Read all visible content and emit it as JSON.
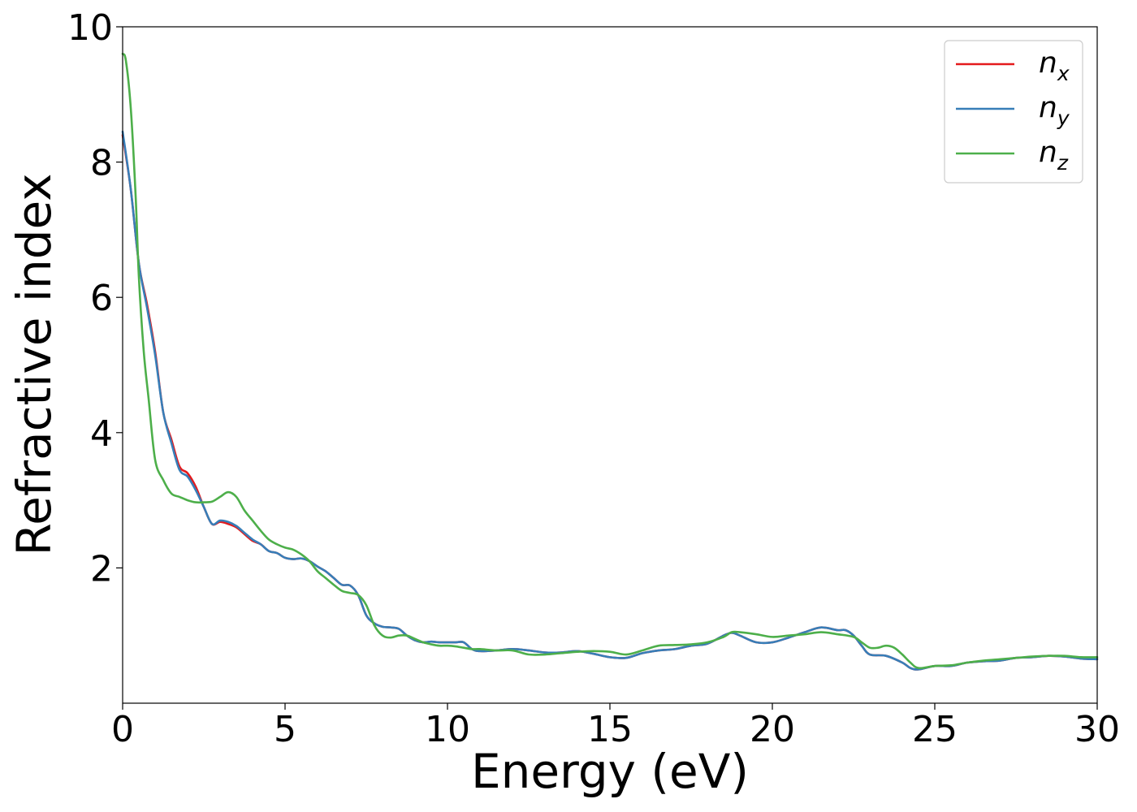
{
  "chart_data": {
    "type": "line",
    "title": "",
    "xlabel": "Energy (eV)",
    "ylabel": "Refractive index",
    "xlim": [
      0,
      30
    ],
    "ylim": [
      0,
      10
    ],
    "xticks": [
      "0",
      "5",
      "10",
      "15",
      "20",
      "25",
      "30"
    ],
    "yticks": [
      "2",
      "4",
      "6",
      "8",
      "10"
    ],
    "grid": false,
    "legend_position": "top-right",
    "series": [
      {
        "name": "n",
        "subscript": "x",
        "color": "#e41a1c",
        "x": [
          0,
          0.25,
          0.5,
          0.75,
          1.0,
          1.25,
          1.5,
          1.75,
          2.0,
          2.25,
          2.5,
          2.75,
          3.0,
          3.25,
          3.5,
          3.75,
          4.0,
          4.25,
          4.5,
          4.75,
          5.0,
          5.25,
          5.5,
          5.75,
          6.0,
          6.25,
          6.5,
          6.75,
          7.0,
          7.25,
          7.5,
          7.75,
          8.0,
          8.25,
          8.5,
          8.75,
          9.0,
          9.25,
          9.5,
          9.75,
          10.0,
          10.25,
          10.5,
          10.75,
          11.0,
          11.5,
          12.0,
          12.5,
          13.0,
          13.5,
          14.0,
          14.5,
          15.0,
          15.5,
          16.0,
          16.5,
          17.0,
          17.5,
          18.0,
          18.5,
          18.75,
          19.0,
          19.5,
          20.0,
          20.5,
          21.0,
          21.5,
          22.0,
          22.25,
          22.5,
          22.75,
          23.0,
          23.5,
          24.0,
          24.25,
          24.5,
          25.0,
          25.5,
          26.0,
          26.5,
          27.0,
          27.5,
          28.0,
          28.5,
          29.0,
          29.5,
          30.0
        ],
        "y": [
          8.4,
          7.6,
          6.5,
          5.9,
          5.2,
          4.3,
          3.9,
          3.5,
          3.4,
          3.2,
          2.9,
          2.65,
          2.68,
          2.65,
          2.6,
          2.5,
          2.4,
          2.35,
          2.25,
          2.22,
          2.15,
          2.13,
          2.14,
          2.1,
          2.02,
          1.95,
          1.85,
          1.75,
          1.74,
          1.6,
          1.3,
          1.18,
          1.13,
          1.12,
          1.1,
          1.0,
          0.93,
          0.9,
          0.91,
          0.9,
          0.9,
          0.9,
          0.9,
          0.8,
          0.77,
          0.78,
          0.8,
          0.78,
          0.75,
          0.75,
          0.77,
          0.73,
          0.68,
          0.67,
          0.74,
          0.78,
          0.8,
          0.85,
          0.88,
          1.0,
          1.04,
          1.0,
          0.9,
          0.9,
          0.97,
          1.05,
          1.12,
          1.08,
          1.08,
          1.0,
          0.85,
          0.72,
          0.7,
          0.6,
          0.52,
          0.5,
          0.55,
          0.55,
          0.6,
          0.62,
          0.63,
          0.67,
          0.68,
          0.7,
          0.69,
          0.66,
          0.65
        ]
      },
      {
        "name": "n",
        "subscript": "y",
        "color": "#377eb8",
        "x": [
          0,
          0.25,
          0.5,
          0.75,
          1.0,
          1.25,
          1.5,
          1.75,
          2.0,
          2.25,
          2.5,
          2.75,
          3.0,
          3.25,
          3.5,
          3.75,
          4.0,
          4.25,
          4.5,
          4.75,
          5.0,
          5.25,
          5.5,
          5.75,
          6.0,
          6.25,
          6.5,
          6.75,
          7.0,
          7.25,
          7.5,
          7.75,
          8.0,
          8.25,
          8.5,
          8.75,
          9.0,
          9.25,
          9.5,
          9.75,
          10.0,
          10.25,
          10.5,
          10.75,
          11.0,
          11.5,
          12.0,
          12.5,
          13.0,
          13.5,
          14.0,
          14.5,
          15.0,
          15.5,
          16.0,
          16.5,
          17.0,
          17.5,
          18.0,
          18.5,
          18.75,
          19.0,
          19.5,
          20.0,
          20.5,
          21.0,
          21.5,
          22.0,
          22.25,
          22.5,
          22.75,
          23.0,
          23.5,
          24.0,
          24.25,
          24.5,
          25.0,
          25.5,
          26.0,
          26.5,
          27.0,
          27.5,
          28.0,
          28.5,
          29.0,
          29.5,
          30.0
        ],
        "y": [
          8.45,
          7.6,
          6.5,
          5.85,
          5.15,
          4.3,
          3.85,
          3.45,
          3.35,
          3.15,
          2.9,
          2.65,
          2.7,
          2.68,
          2.62,
          2.52,
          2.42,
          2.35,
          2.25,
          2.22,
          2.15,
          2.13,
          2.14,
          2.1,
          2.02,
          1.95,
          1.85,
          1.75,
          1.74,
          1.6,
          1.3,
          1.18,
          1.13,
          1.12,
          1.1,
          1.0,
          0.93,
          0.9,
          0.91,
          0.9,
          0.9,
          0.9,
          0.9,
          0.8,
          0.77,
          0.78,
          0.8,
          0.78,
          0.75,
          0.75,
          0.77,
          0.73,
          0.68,
          0.67,
          0.74,
          0.78,
          0.8,
          0.85,
          0.88,
          1.0,
          1.04,
          1.0,
          0.9,
          0.9,
          0.97,
          1.05,
          1.12,
          1.08,
          1.08,
          1.0,
          0.85,
          0.72,
          0.7,
          0.6,
          0.52,
          0.5,
          0.55,
          0.55,
          0.6,
          0.62,
          0.63,
          0.67,
          0.68,
          0.7,
          0.69,
          0.66,
          0.65
        ]
      },
      {
        "name": "n",
        "subscript": "z",
        "color": "#4daf4a",
        "x": [
          0,
          0.1,
          0.25,
          0.4,
          0.5,
          0.65,
          0.8,
          1.0,
          1.25,
          1.5,
          1.75,
          2.0,
          2.25,
          2.5,
          2.75,
          3.0,
          3.25,
          3.5,
          3.75,
          4.0,
          4.25,
          4.5,
          4.75,
          5.0,
          5.25,
          5.5,
          5.75,
          6.0,
          6.25,
          6.5,
          6.75,
          7.0,
          7.25,
          7.5,
          7.75,
          8.0,
          8.25,
          8.5,
          8.75,
          9.0,
          9.25,
          9.5,
          9.75,
          10.0,
          10.25,
          10.5,
          10.75,
          11.0,
          11.5,
          12.0,
          12.5,
          13.0,
          13.5,
          14.0,
          14.5,
          15.0,
          15.5,
          16.0,
          16.5,
          17.0,
          17.5,
          18.0,
          18.5,
          18.75,
          19.0,
          19.5,
          20.0,
          20.5,
          21.0,
          21.5,
          22.0,
          22.5,
          22.75,
          23.0,
          23.25,
          23.5,
          23.75,
          24.0,
          24.25,
          24.5,
          25.0,
          25.5,
          26.0,
          26.5,
          27.0,
          27.5,
          28.0,
          28.5,
          29.0,
          29.5,
          30.0
        ],
        "y": [
          9.6,
          9.5,
          8.8,
          7.5,
          6.3,
          5.2,
          4.5,
          3.6,
          3.3,
          3.1,
          3.05,
          3.0,
          2.97,
          2.97,
          2.98,
          3.05,
          3.12,
          3.05,
          2.85,
          2.7,
          2.55,
          2.42,
          2.35,
          2.3,
          2.27,
          2.2,
          2.1,
          1.95,
          1.85,
          1.75,
          1.66,
          1.63,
          1.6,
          1.45,
          1.15,
          1.0,
          0.97,
          1.0,
          1.0,
          0.95,
          0.9,
          0.87,
          0.85,
          0.85,
          0.84,
          0.82,
          0.8,
          0.8,
          0.78,
          0.78,
          0.72,
          0.72,
          0.74,
          0.76,
          0.77,
          0.76,
          0.72,
          0.78,
          0.85,
          0.86,
          0.87,
          0.9,
          0.98,
          1.05,
          1.05,
          1.02,
          0.98,
          1.0,
          1.02,
          1.05,
          1.02,
          0.98,
          0.9,
          0.82,
          0.82,
          0.85,
          0.82,
          0.72,
          0.6,
          0.52,
          0.55,
          0.56,
          0.6,
          0.63,
          0.65,
          0.67,
          0.69,
          0.7,
          0.7,
          0.68,
          0.68
        ]
      }
    ]
  }
}
